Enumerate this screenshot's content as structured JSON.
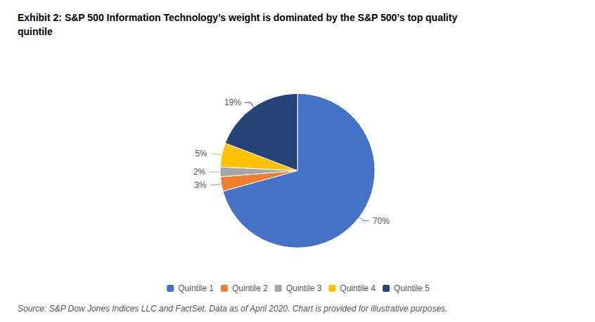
{
  "chart_data": {
    "type": "pie",
    "title": "Exhibit 2: S&P 500 Information Technology’s weight is dominated by the S&P 500’s top quality\nquintile",
    "categories": [
      "Quintile 1",
      "Quintile 2",
      "Quintile 3",
      "Quintile 4",
      "Quintile 5"
    ],
    "values": [
      70,
      3,
      2,
      5,
      19
    ],
    "value_labels": [
      "70%",
      "3%",
      "2%",
      "5%",
      "19%"
    ],
    "colors": [
      "#4472C4",
      "#ED7D31",
      "#A5A5A5",
      "#FFC000",
      "#264478"
    ],
    "data_labels": true,
    "legend": "bottom",
    "annotations": [
      "Source: S&P Dow Jones Indices LLC and FactSet. Data as of April 2020. Chart is provided for illustrative purposes."
    ]
  }
}
